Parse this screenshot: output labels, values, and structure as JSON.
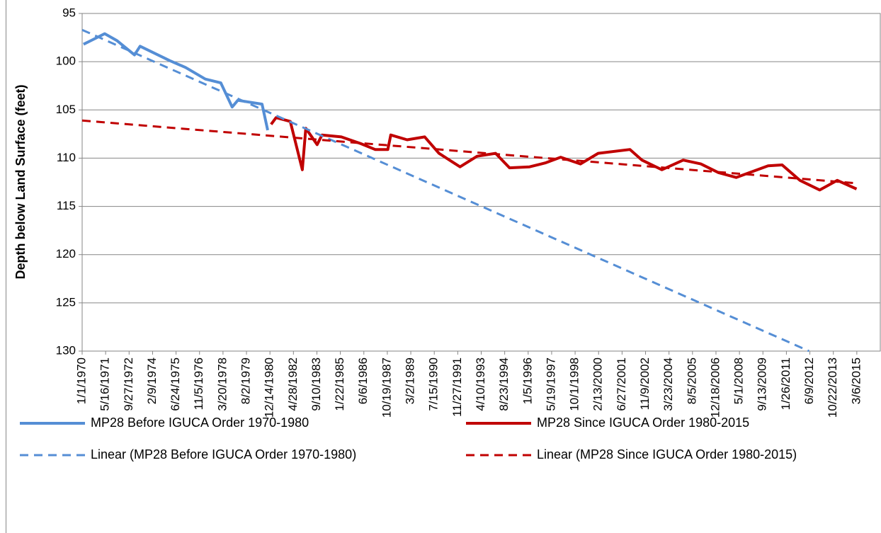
{
  "chart_data": {
    "type": "line",
    "y_label": "Depth below Land Surface (feet)",
    "ylim": [
      130,
      95
    ],
    "yticks": [
      95,
      100,
      105,
      110,
      115,
      120,
      125,
      130
    ],
    "xlim": [
      "1/1/1970",
      "7/18/2016"
    ],
    "xticks": [
      "1/1/1970",
      "5/16/1971",
      "9/27/1972",
      "2/9/1974",
      "6/24/1975",
      "11/5/1976",
      "3/20/1978",
      "8/2/1979",
      "12/14/1980",
      "4/28/1982",
      "9/10/1983",
      "1/22/1985",
      "6/6/1986",
      "10/19/1987",
      "3/2/1989",
      "7/15/1990",
      "11/27/1991",
      "4/10/1993",
      "8/23/1994",
      "1/5/1996",
      "5/19/1997",
      "10/1/1998",
      "2/13/2000",
      "6/27/2001",
      "11/9/2002",
      "3/23/2004",
      "8/5/2005",
      "12/18/2006",
      "5/1/2008",
      "9/13/2009",
      "1/26/2011",
      "6/9/2012",
      "10/22/2013",
      "3/6/2015"
    ],
    "grid": true,
    "legend": "bottom",
    "series": [
      {
        "name": "MP28 Before IGUCA Order 1970-1980",
        "color": "#558ed5",
        "style": "solid",
        "x": [
          "1/30/1970",
          "4/27/1971",
          "1/8/1972",
          "1/19/1973",
          "5/19/1973",
          "2/14/1975",
          "1/12/1976",
          "3/8/1977",
          "2/2/1978",
          "10/1/1978",
          "1/30/1979",
          "6/28/1980",
          "10/27/1980"
        ],
        "values": [
          98.2,
          97.1,
          97.8,
          99.3,
          98.4,
          99.9,
          100.6,
          101.8,
          102.2,
          104.7,
          104.0,
          104.4,
          107.1
        ]
      },
      {
        "name": "MP28 Since IGUCA Order 1980-2015",
        "color": "#c00000",
        "style": "solid",
        "x": [
          "1/8/1981",
          "4/23/1981",
          "2/20/1982",
          "11/3/1982",
          "1/16/1983",
          "9/15/1983",
          "12/28/1983",
          "2/10/1985",
          "4/5/1986",
          "2/2/1987",
          "10/30/1987",
          "1/1/1988",
          "12/14/1988",
          "12/24/1989",
          "10/23/1990",
          "1/15/1992",
          "1/12/1993",
          "2/10/1994",
          "12/5/1994",
          "2/2/1996",
          "1/1/1997",
          "11/28/1997",
          "1/22/1999",
          "2/3/2000",
          "12/12/2001",
          "8/25/2002",
          "10/23/2003",
          "1/19/2005",
          "1/29/2006",
          "2/10/2007",
          "2/21/2008",
          "1/1/2010",
          "10/27/2010",
          "11/10/2011",
          "1/5/2013",
          "1/15/2014",
          "2/28/2015"
        ],
        "values": [
          106.5,
          105.8,
          106.2,
          111.2,
          106.9,
          108.6,
          107.6,
          107.8,
          108.5,
          109.1,
          109.1,
          107.6,
          108.1,
          107.8,
          109.5,
          110.9,
          109.8,
          109.5,
          111.0,
          110.9,
          110.5,
          109.9,
          110.6,
          109.5,
          109.1,
          110.2,
          111.2,
          110.2,
          110.6,
          111.5,
          112.0,
          110.8,
          110.7,
          112.3,
          113.3,
          112.3,
          113.2
        ]
      },
      {
        "name": "Linear (MP28 Before IGUCA Order 1970-1980)",
        "color": "#558ed5",
        "style": "dashed",
        "x": [
          "1/1/1970",
          "5/22/2012"
        ],
        "values": [
          96.7,
          130
        ]
      },
      {
        "name": "Linear (MP28 Since IGUCA Order 1980-2015)",
        "color": "#c00000",
        "style": "dashed",
        "x": [
          "1/1/1970",
          "3/6/2015"
        ],
        "values": [
          106.1,
          112.6
        ]
      }
    ]
  }
}
